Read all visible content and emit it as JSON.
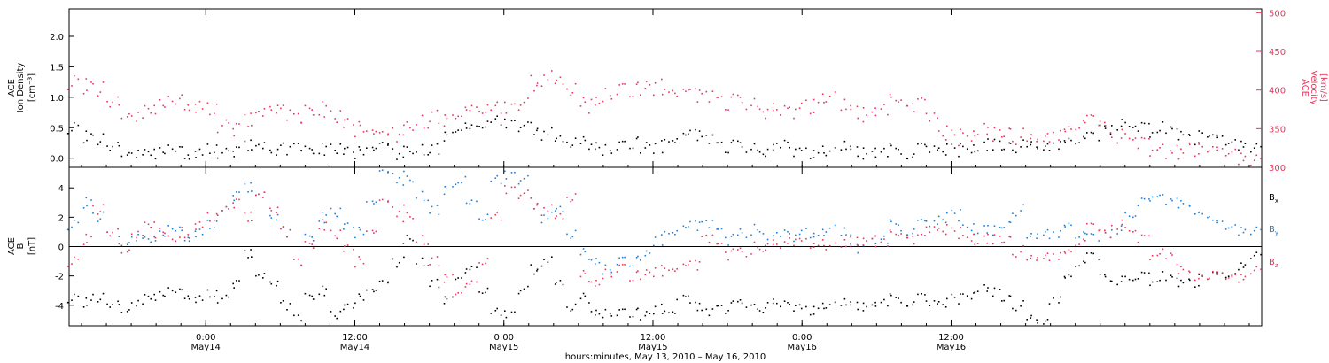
{
  "chart_data": [
    {
      "type": "scatter",
      "panel": "top",
      "ylabel_lines": [
        "ACE",
        "Ion Density"
      ],
      "yunit": "[cm⁻³]",
      "y2label_lines": [
        "ACE",
        "Velocity"
      ],
      "y2unit": "[km/s]",
      "xlim_hours": [
        0,
        96
      ],
      "ylim": [
        -0.15,
        2.45
      ],
      "y2lim": [
        300,
        505
      ],
      "yticks": [
        0.0,
        0.5,
        1.0,
        1.5,
        2.0
      ],
      "ytick_labels": [
        "0.0",
        "0.5",
        "1.0",
        "1.5",
        "2.0"
      ],
      "y2ticks": [
        300,
        350,
        400,
        450,
        500
      ],
      "y2tick_labels": [
        "300",
        "350",
        "400",
        "450",
        "500"
      ],
      "series": [
        {
          "color": "#000000",
          "axis": "left",
          "x": [
            0,
            1,
            2,
            3,
            4,
            5,
            6,
            7,
            8,
            9,
            10,
            11,
            12,
            13,
            14,
            15,
            16,
            17,
            18,
            19,
            20,
            21,
            22,
            23,
            24,
            25,
            26,
            27,
            28,
            29,
            30,
            31,
            32,
            33,
            34,
            35,
            36,
            37,
            38,
            39,
            40,
            41,
            42,
            43,
            44,
            45,
            46,
            47,
            48,
            49,
            50,
            51,
            52,
            53,
            54,
            55,
            56,
            57,
            58,
            59,
            60,
            61,
            62,
            63,
            64,
            65,
            66,
            67,
            68,
            69,
            70,
            71,
            72,
            73,
            74,
            75,
            76,
            77,
            78,
            79,
            80,
            81,
            82,
            83,
            84,
            85,
            86,
            87,
            88,
            89,
            90,
            91,
            92,
            93,
            94,
            95,
            96
          ],
          "y": [
            0.5,
            0.35,
            0.3,
            0.2,
            0.15,
            0.12,
            0.1,
            0.1,
            0.15,
            0.1,
            0.1,
            0.15,
            0.1,
            0.12,
            0.2,
            0.2,
            0.1,
            0.15,
            0.2,
            0.1,
            0.15,
            0.2,
            0.15,
            0.1,
            0.15,
            0.2,
            0.1,
            0.1,
            0.15,
            0.15,
            0.4,
            0.5,
            0.5,
            0.55,
            0.6,
            0.6,
            0.5,
            0.5,
            0.4,
            0.3,
            0.3,
            0.25,
            0.2,
            0.15,
            0.2,
            0.25,
            0.2,
            0.2,
            0.3,
            0.35,
            0.4,
            0.3,
            0.2,
            0.2,
            0.2,
            0.15,
            0.15,
            0.2,
            0.15,
            0.1,
            0.15,
            0.1,
            0.2,
            0.15,
            0.1,
            0.1,
            0.15,
            0.1,
            0.15,
            0.1,
            0.15,
            0.15,
            0.2,
            0.2,
            0.25,
            0.2,
            0.2,
            0.3,
            0.25,
            0.25,
            0.3,
            0.35,
            0.4,
            0.5,
            0.55,
            0.5,
            0.5,
            0.45,
            0.5,
            0.4,
            0.3,
            0.35,
            0.3,
            0.25,
            0.25,
            0.2,
            0.2
          ]
        },
        {
          "color": "#e8365d",
          "axis": "right",
          "x": [
            0,
            1,
            2,
            3,
            4,
            5,
            6,
            7,
            8,
            9,
            10,
            11,
            12,
            13,
            14,
            15,
            16,
            17,
            18,
            19,
            20,
            21,
            22,
            23,
            24,
            25,
            26,
            27,
            28,
            29,
            30,
            31,
            32,
            33,
            34,
            35,
            36,
            37,
            38,
            39,
            40,
            41,
            42,
            43,
            44,
            45,
            46,
            47,
            48,
            49,
            50,
            51,
            52,
            53,
            54,
            55,
            56,
            57,
            58,
            59,
            60,
            61,
            62,
            63,
            64,
            65,
            66,
            67,
            68,
            69,
            70,
            71,
            72,
            73,
            74,
            75,
            76,
            77,
            78,
            79,
            80,
            81,
            82,
            83,
            84,
            85,
            86,
            87,
            88,
            89,
            90,
            91,
            92,
            93,
            94,
            95,
            96
          ],
          "y": [
            410,
            405,
            400,
            385,
            375,
            370,
            375,
            380,
            385,
            385,
            380,
            375,
            355,
            350,
            360,
            370,
            375,
            370,
            365,
            370,
            375,
            370,
            360,
            350,
            345,
            340,
            345,
            350,
            360,
            365,
            365,
            370,
            375,
            375,
            375,
            380,
            380,
            410,
            415,
            410,
            405,
            380,
            385,
            395,
            400,
            400,
            405,
            405,
            400,
            395,
            395,
            390,
            385,
            385,
            385,
            380,
            375,
            370,
            375,
            380,
            390,
            390,
            380,
            375,
            370,
            375,
            385,
            390,
            380,
            360,
            345,
            340,
            345,
            350,
            345,
            345,
            340,
            345,
            345,
            345,
            350,
            360,
            365,
            355,
            340,
            335,
            330,
            325,
            320,
            320,
            322,
            320,
            318,
            318,
            315,
            312,
            312
          ]
        }
      ]
    },
    {
      "type": "scatter",
      "panel": "bottom",
      "ylabel_lines": [
        "ACE",
        "B"
      ],
      "yunit": "[nT]",
      "xlim_hours": [
        0,
        96
      ],
      "ylim": [
        -5.4,
        5.4
      ],
      "yticks": [
        -4,
        -2,
        0,
        2,
        4
      ],
      "ytick_labels": [
        "-4",
        "-2",
        "0",
        "2",
        "4"
      ],
      "legend": [
        {
          "label": "B",
          "sub": "x",
          "color": "#000000"
        },
        {
          "label": "B",
          "sub": "y",
          "color": "#1f7fd8"
        },
        {
          "label": "B",
          "sub": "z",
          "color": "#e8365d"
        }
      ],
      "series": [
        {
          "name": "Bx",
          "color": "#000000",
          "x": [
            0,
            1,
            2,
            3,
            4,
            5,
            6,
            7,
            8,
            9,
            10,
            11,
            12,
            13,
            14,
            15,
            16,
            17,
            18,
            19,
            20,
            21,
            22,
            23,
            24,
            25,
            26,
            27,
            28,
            29,
            30,
            31,
            32,
            33,
            34,
            35,
            36,
            37,
            38,
            39,
            40,
            41,
            42,
            43,
            44,
            45,
            46,
            47,
            48,
            49,
            50,
            51,
            52,
            53,
            54,
            55,
            56,
            57,
            58,
            59,
            60,
            61,
            62,
            63,
            64,
            65,
            66,
            67,
            68,
            69,
            70,
            71,
            72,
            73,
            74,
            75,
            76,
            77,
            78,
            79,
            80,
            81,
            82,
            83,
            84,
            85,
            86,
            87,
            88,
            89,
            90,
            91,
            92,
            93,
            94,
            95,
            96
          ],
          "y": [
            -3.5,
            -3.8,
            -3.5,
            -3.9,
            -4.1,
            -3.7,
            -3.4,
            -3.3,
            -3.0,
            -3.2,
            -3.5,
            -3.2,
            -3.5,
            -2.5,
            -0.5,
            -2.0,
            -2.5,
            -4.0,
            -4.8,
            -3.5,
            -3.0,
            -4.5,
            -4.0,
            -3.5,
            -3.0,
            -2.5,
            -1.0,
            0.5,
            -1.0,
            -2.5,
            -3.5,
            -2.0,
            -1.5,
            -3.0,
            -4.5,
            -4.5,
            -3.0,
            -1.5,
            -1.0,
            -2.5,
            -4.0,
            -3.5,
            -4.5,
            -4.5,
            -4.5,
            -4.5,
            -4.6,
            -4.2,
            -4.4,
            -3.5,
            -4.0,
            -4.5,
            -4.2,
            -4.0,
            -3.8,
            -4.2,
            -3.8,
            -4.0,
            -4.0,
            -4.3,
            -4.0,
            -4.0,
            -3.8,
            -3.9,
            -4.0,
            -3.8,
            -3.5,
            -3.7,
            -3.5,
            -4.0,
            -3.8,
            -3.5,
            -3.2,
            -2.8,
            -3.0,
            -3.5,
            -4.0,
            -4.6,
            -4.9,
            -3.5,
            -2.0,
            -1.0,
            -0.5,
            -2.0,
            -2.3,
            -2.3,
            -2.0,
            -2.3,
            -2.0,
            -2.4,
            -2.5,
            -2.2,
            -2.0,
            -2.0,
            -1.2,
            -0.5,
            -1.5
          ]
        },
        {
          "name": "By",
          "color": "#1f7fd8",
          "x": [
            0,
            1,
            2,
            3,
            4,
            5,
            6,
            7,
            8,
            9,
            10,
            11,
            12,
            13,
            14,
            15,
            16,
            17,
            18,
            19,
            20,
            21,
            22,
            23,
            24,
            25,
            26,
            27,
            28,
            29,
            30,
            31,
            32,
            33,
            34,
            35,
            36,
            37,
            38,
            39,
            40,
            41,
            42,
            43,
            44,
            45,
            46,
            47,
            48,
            49,
            50,
            51,
            52,
            53,
            54,
            55,
            56,
            57,
            58,
            59,
            60,
            61,
            62,
            63,
            64,
            65,
            66,
            67,
            68,
            69,
            70,
            71,
            72,
            73,
            74,
            75,
            76,
            77,
            78,
            79,
            80,
            81,
            82,
            83,
            84,
            85,
            86,
            87,
            88,
            89,
            90,
            91,
            92,
            93,
            94,
            95,
            96
          ],
          "y": [
            1.5,
            3.0,
            2.0,
            1.0,
            0.5,
            0.8,
            0.5,
            0.8,
            1.2,
            0.8,
            1.0,
            1.5,
            2.5,
            3.5,
            4.0,
            3.5,
            2.0,
            1.0,
            -1.0,
            0.5,
            2.0,
            2.5,
            1.5,
            1.0,
            3.0,
            5.0,
            4.8,
            4.5,
            3.5,
            2.5,
            4.0,
            4.5,
            3.0,
            2.0,
            4.5,
            5.0,
            4.5,
            3.0,
            2.0,
            2.5,
            1.0,
            -0.5,
            -1.0,
            -1.5,
            -1.0,
            -1.0,
            -0.5,
            0.5,
            1.0,
            1.2,
            1.5,
            1.5,
            1.0,
            0.5,
            1.0,
            1.2,
            0.5,
            0.8,
            0.8,
            1.0,
            1.0,
            1.2,
            1.0,
            0.0,
            0.5,
            0.5,
            1.5,
            1.2,
            1.5,
            1.4,
            2.0,
            2.2,
            1.5,
            1.2,
            1.2,
            1.5,
            2.5,
            1.0,
            1.2,
            1.0,
            1.5,
            1.0,
            0.8,
            1.0,
            1.2,
            2.0,
            3.0,
            3.5,
            3.2,
            3.0,
            2.5,
            2.0,
            1.5,
            1.3,
            1.2,
            1.2,
            1.0
          ]
        },
        {
          "name": "Bz",
          "color": "#e8365d",
          "x": [
            0,
            1,
            2,
            3,
            4,
            5,
            6,
            7,
            8,
            9,
            10,
            11,
            12,
            13,
            14,
            15,
            16,
            17,
            18,
            19,
            20,
            21,
            22,
            23,
            24,
            25,
            26,
            27,
            28,
            29,
            30,
            31,
            32,
            33,
            34,
            35,
            36,
            37,
            38,
            39,
            40,
            41,
            42,
            43,
            44,
            45,
            46,
            47,
            48,
            49,
            50,
            51,
            52,
            53,
            54,
            55,
            56,
            57,
            58,
            59,
            60,
            61,
            62,
            63,
            64,
            65,
            66,
            67,
            68,
            69,
            70,
            71,
            72,
            73,
            74,
            75,
            76,
            77,
            78,
            79,
            80,
            81,
            82,
            83,
            84,
            85,
            86,
            87,
            88,
            89,
            90,
            91,
            92,
            93,
            94,
            95,
            96
          ],
          "y": [
            -1.0,
            0.5,
            2.5,
            1.0,
            0.0,
            1.0,
            1.5,
            1.0,
            0.5,
            1.0,
            1.5,
            2.0,
            2.5,
            3.0,
            2.0,
            3.5,
            2.5,
            1.0,
            -1.0,
            0.0,
            1.5,
            1.0,
            0.0,
            -1.0,
            1.0,
            3.0,
            2.5,
            2.0,
            0.5,
            -1.0,
            -2.0,
            -3.0,
            -2.5,
            -1.0,
            2.0,
            4.0,
            3.5,
            3.0,
            2.5,
            2.0,
            3.5,
            -2.0,
            -2.5,
            -1.8,
            -1.5,
            -2.0,
            -1.8,
            -1.6,
            -1.5,
            -1.4,
            -1.2,
            0.5,
            0.0,
            -0.5,
            -0.3,
            0.0,
            0.2,
            0.0,
            0.5,
            0.3,
            0.3,
            0.0,
            0.2,
            0.5,
            0.5,
            0.3,
            0.8,
            1.0,
            0.5,
            1.0,
            1.2,
            1.0,
            0.8,
            0.5,
            0.6,
            0.5,
            -0.3,
            -0.5,
            -0.4,
            -0.5,
            -0.3,
            0.5,
            1.5,
            1.0,
            1.5,
            1.0,
            0.5,
            -0.5,
            -0.5,
            -1.5,
            -2.0,
            -2.2,
            -2.0,
            -2.1,
            -2.0,
            -1.5,
            -1.8
          ]
        }
      ]
    }
  ],
  "xaxis": {
    "xlim_hours": [
      0,
      96
    ],
    "ticks": [
      {
        "h": 11,
        "time": "0:00",
        "date": "May14"
      },
      {
        "h": 23,
        "time": "12:00",
        "date": "May14"
      },
      {
        "h": 35,
        "time": "0:00",
        "date": "May15"
      },
      {
        "h": 47,
        "time": "12:00",
        "date": "May15"
      },
      {
        "h": 59,
        "time": "0:00",
        "date": "May16"
      },
      {
        "h": 71,
        "time": "12:00",
        "date": "May16"
      }
    ],
    "xlabel": "hours:minutes, May 13, 2010 – May 16, 2010"
  }
}
